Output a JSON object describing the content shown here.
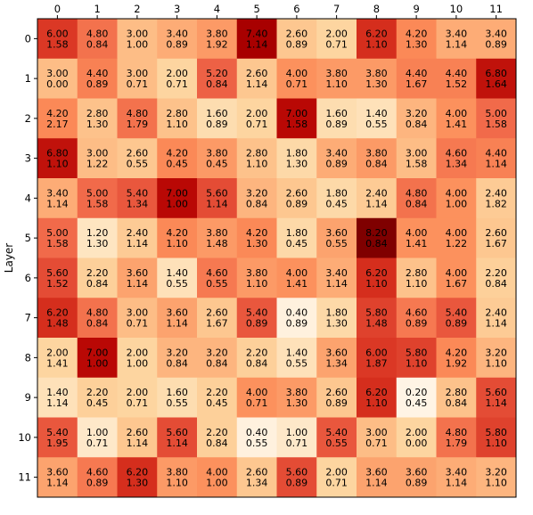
{
  "chart_data": {
    "type": "heatmap",
    "title": "",
    "xlabel": "",
    "ylabel": "Layer",
    "x_axis_position": "top",
    "colormap": "OrRd",
    "value_range": [
      0,
      8.2
    ],
    "x_ticks": [
      "0",
      "1",
      "2",
      "3",
      "4",
      "5",
      "6",
      "7",
      "8",
      "9",
      "10",
      "11"
    ],
    "y_ticks": [
      "0",
      "1",
      "2",
      "3",
      "4",
      "5",
      "6",
      "7",
      "8",
      "9",
      "10",
      "11"
    ],
    "cells": [
      [
        [
          "6.00",
          "1.58"
        ],
        [
          "4.80",
          "0.84"
        ],
        [
          "3.00",
          "1.00"
        ],
        [
          "3.40",
          "0.89"
        ],
        [
          "3.80",
          "1.92"
        ],
        [
          "7.40",
          "1.14"
        ],
        [
          "2.60",
          "0.89"
        ],
        [
          "2.00",
          "0.71"
        ],
        [
          "6.20",
          "1.10"
        ],
        [
          "4.20",
          "1.30"
        ],
        [
          "3.40",
          "1.14"
        ],
        [
          "3.40",
          "0.89"
        ]
      ],
      [
        [
          "3.00",
          "0.00"
        ],
        [
          "4.40",
          "0.89"
        ],
        [
          "3.00",
          "0.71"
        ],
        [
          "2.00",
          "0.71"
        ],
        [
          "5.20",
          "0.84"
        ],
        [
          "2.60",
          "1.14"
        ],
        [
          "4.00",
          "0.71"
        ],
        [
          "3.80",
          "1.10"
        ],
        [
          "3.80",
          "1.30"
        ],
        [
          "4.40",
          "1.67"
        ],
        [
          "4.40",
          "1.52"
        ],
        [
          "6.80",
          "1.64"
        ]
      ],
      [
        [
          "4.20",
          "2.17"
        ],
        [
          "2.80",
          "1.30"
        ],
        [
          "4.80",
          "1.79"
        ],
        [
          "2.80",
          "1.10"
        ],
        [
          "1.60",
          "0.89"
        ],
        [
          "2.00",
          "0.71"
        ],
        [
          "7.00",
          "1.58"
        ],
        [
          "1.60",
          "0.89"
        ],
        [
          "1.40",
          "0.55"
        ],
        [
          "3.20",
          "0.84"
        ],
        [
          "4.00",
          "1.41"
        ],
        [
          "5.00",
          "1.58"
        ]
      ],
      [
        [
          "6.80",
          "1.10"
        ],
        [
          "3.00",
          "1.22"
        ],
        [
          "2.60",
          "0.55"
        ],
        [
          "4.20",
          "0.45"
        ],
        [
          "3.80",
          "0.45"
        ],
        [
          "2.80",
          "1.10"
        ],
        [
          "1.80",
          "1.30"
        ],
        [
          "3.40",
          "0.89"
        ],
        [
          "3.80",
          "0.84"
        ],
        [
          "3.00",
          "1.58"
        ],
        [
          "4.60",
          "1.34"
        ],
        [
          "4.40",
          "1.14"
        ]
      ],
      [
        [
          "3.40",
          "1.14"
        ],
        [
          "5.00",
          "1.58"
        ],
        [
          "5.40",
          "1.34"
        ],
        [
          "7.00",
          "1.00"
        ],
        [
          "5.60",
          "1.14"
        ],
        [
          "3.20",
          "0.84"
        ],
        [
          "2.60",
          "0.89"
        ],
        [
          "1.80",
          "0.45"
        ],
        [
          "2.40",
          "1.14"
        ],
        [
          "4.80",
          "0.84"
        ],
        [
          "4.00",
          "1.00"
        ],
        [
          "2.40",
          "1.82"
        ]
      ],
      [
        [
          "5.00",
          "1.58"
        ],
        [
          "1.20",
          "1.30"
        ],
        [
          "2.40",
          "1.14"
        ],
        [
          "4.20",
          "1.10"
        ],
        [
          "3.80",
          "1.48"
        ],
        [
          "4.20",
          "1.30"
        ],
        [
          "1.80",
          "0.45"
        ],
        [
          "3.60",
          "0.55"
        ],
        [
          "8.20",
          "0.84"
        ],
        [
          "4.00",
          "1.41"
        ],
        [
          "4.00",
          "1.22"
        ],
        [
          "2.60",
          "1.67"
        ]
      ],
      [
        [
          "5.60",
          "1.52"
        ],
        [
          "2.20",
          "0.84"
        ],
        [
          "3.60",
          "1.14"
        ],
        [
          "1.40",
          "0.55"
        ],
        [
          "4.60",
          "0.55"
        ],
        [
          "3.80",
          "1.10"
        ],
        [
          "4.00",
          "1.41"
        ],
        [
          "3.40",
          "1.14"
        ],
        [
          "6.20",
          "1.10"
        ],
        [
          "2.80",
          "1.10"
        ],
        [
          "4.00",
          "1.67"
        ],
        [
          "2.20",
          "0.84"
        ]
      ],
      [
        [
          "6.20",
          "1.48"
        ],
        [
          "4.80",
          "0.84"
        ],
        [
          "3.00",
          "0.71"
        ],
        [
          "3.60",
          "1.14"
        ],
        [
          "2.60",
          "1.67"
        ],
        [
          "5.40",
          "0.89"
        ],
        [
          "0.40",
          "0.89"
        ],
        [
          "1.80",
          "1.30"
        ],
        [
          "5.80",
          "1.48"
        ],
        [
          "4.60",
          "0.89"
        ],
        [
          "5.40",
          "0.89"
        ],
        [
          "2.40",
          "1.14"
        ]
      ],
      [
        [
          "2.00",
          "1.41"
        ],
        [
          "7.00",
          "1.00"
        ],
        [
          "2.00",
          "1.00"
        ],
        [
          "3.20",
          "0.84"
        ],
        [
          "3.20",
          "0.84"
        ],
        [
          "2.20",
          "0.84"
        ],
        [
          "1.40",
          "0.55"
        ],
        [
          "3.60",
          "1.34"
        ],
        [
          "6.00",
          "1.87"
        ],
        [
          "5.80",
          "1.10"
        ],
        [
          "4.20",
          "1.92"
        ],
        [
          "3.20",
          "1.10"
        ]
      ],
      [
        [
          "1.40",
          "1.14"
        ],
        [
          "2.20",
          "0.45"
        ],
        [
          "2.00",
          "0.71"
        ],
        [
          "1.60",
          "0.55"
        ],
        [
          "2.20",
          "0.45"
        ],
        [
          "4.00",
          "0.71"
        ],
        [
          "3.80",
          "1.30"
        ],
        [
          "2.60",
          "0.89"
        ],
        [
          "6.20",
          "1.10"
        ],
        [
          "0.20",
          "0.45"
        ],
        [
          "2.80",
          "0.84"
        ],
        [
          "5.60",
          "1.14"
        ]
      ],
      [
        [
          "5.40",
          "1.95"
        ],
        [
          "1.00",
          "0.71"
        ],
        [
          "2.60",
          "1.14"
        ],
        [
          "5.60",
          "1.14"
        ],
        [
          "2.20",
          "0.84"
        ],
        [
          "0.40",
          "0.55"
        ],
        [
          "1.00",
          "0.71"
        ],
        [
          "5.40",
          "0.55"
        ],
        [
          "3.00",
          "0.71"
        ],
        [
          "2.00",
          "0.00"
        ],
        [
          "4.80",
          "1.79"
        ],
        [
          "5.80",
          "1.10"
        ]
      ],
      [
        [
          "3.60",
          "1.14"
        ],
        [
          "4.60",
          "0.89"
        ],
        [
          "6.20",
          "1.30"
        ],
        [
          "3.80",
          "1.10"
        ],
        [
          "4.00",
          "1.00"
        ],
        [
          "2.60",
          "1.34"
        ],
        [
          "5.60",
          "0.89"
        ],
        [
          "2.00",
          "0.71"
        ],
        [
          "3.60",
          "1.14"
        ],
        [
          "3.60",
          "0.89"
        ],
        [
          "3.40",
          "1.14"
        ],
        [
          "3.20",
          "1.10"
        ]
      ]
    ]
  }
}
